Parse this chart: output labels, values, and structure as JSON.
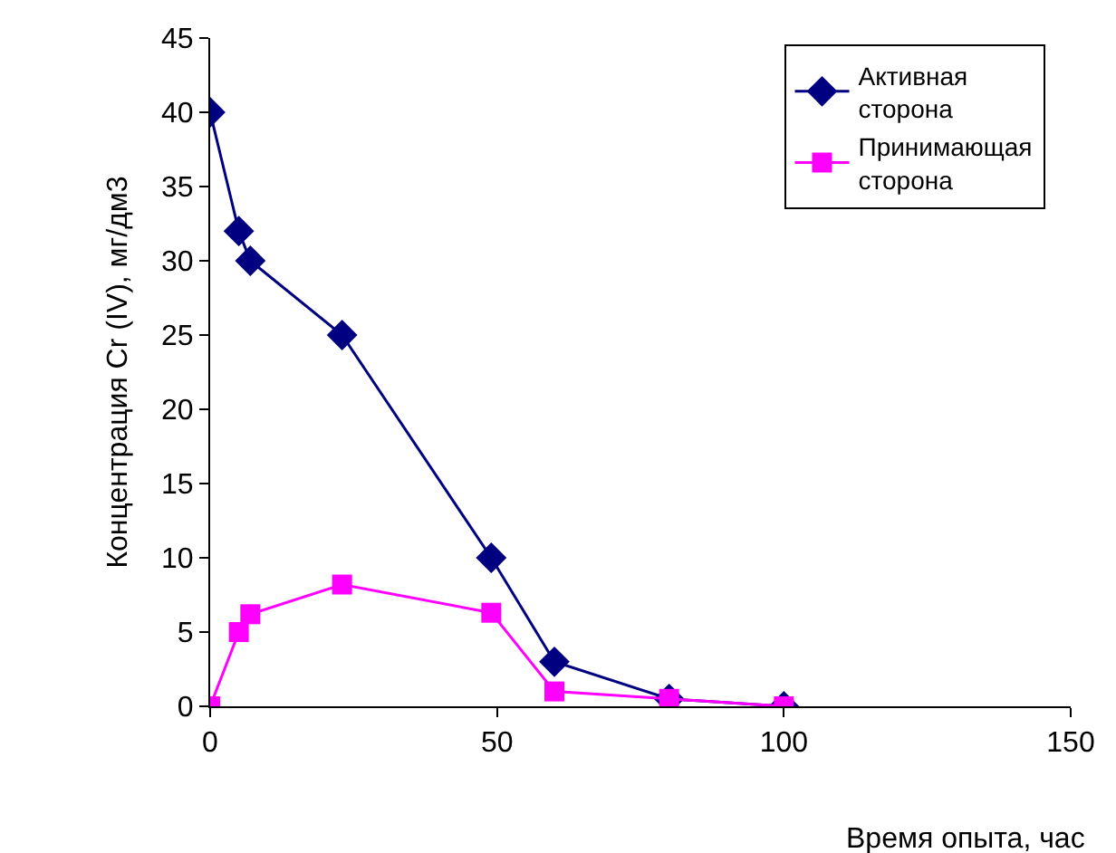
{
  "chart_data": {
    "type": "line",
    "xlabel": "Время опыта, час",
    "ylabel": "Концентрация Cr (IV), мг/дм3",
    "xlim": [
      0,
      150
    ],
    "xticks": [
      0,
      50,
      100,
      150
    ],
    "ylim": [
      0,
      45
    ],
    "yticks": [
      0,
      5,
      10,
      15,
      20,
      25,
      30,
      35,
      40,
      45
    ],
    "legend": "top right",
    "line_style": "solid",
    "series": [
      {
        "name": "Активная сторона",
        "color": "#000080",
        "marker": "diamond",
        "x": [
          0,
          5,
          7,
          23,
          49,
          60,
          80,
          100
        ],
        "values": [
          40,
          32,
          30,
          25,
          10,
          3,
          0.5,
          0
        ]
      },
      {
        "name": "Принимающая сторона",
        "color": "#ff00ff",
        "marker": "square",
        "x": [
          0,
          5,
          7,
          23,
          49,
          60,
          80,
          100
        ],
        "values": [
          0,
          5,
          6.2,
          8.2,
          6.3,
          1,
          0.5,
          0
        ]
      }
    ]
  }
}
